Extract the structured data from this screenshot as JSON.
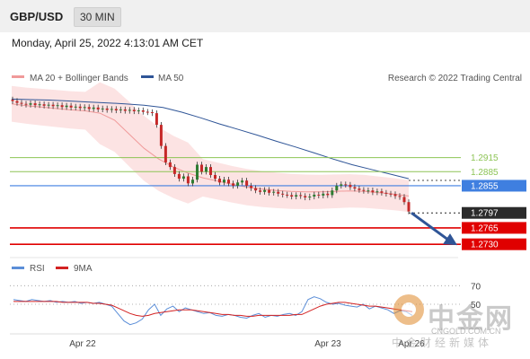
{
  "header": {
    "pair": "GBP/USD",
    "timeframe": "30 MIN"
  },
  "datetime": "Monday, April 25, 2022 4:13:01 AM CET",
  "colors": {
    "ma20": "#f09a9a",
    "ma50": "#2f5597",
    "bands": "#fcdede",
    "up": "#2e7d32",
    "down": "#c62828",
    "resistance_green": "#8dc455",
    "pivot_blue": "#3f7fe0",
    "support_red": "#e00000",
    "arrow": "#2f5597",
    "rsi": "#5b8ed8",
    "rsi_ma": "#d32222"
  },
  "chart_data": [
    {
      "type": "candlestick",
      "legend": [
        {
          "label": "MA 20 + Bollinger Bands",
          "color": "#f09a9a"
        },
        {
          "label": "MA 50",
          "color": "#2f5597"
        }
      ],
      "legend_placement": "top-left",
      "credit": "Research © 2022 Trading Central",
      "levels": [
        {
          "value": 1.2915,
          "label": "1.2915",
          "kind": "resistance"
        },
        {
          "value": 1.2885,
          "label": "1.2885",
          "kind": "resistance"
        },
        {
          "value": 1.2855,
          "label": "1.2855",
          "kind": "pivot"
        },
        {
          "value": 1.2797,
          "label": "1.2797",
          "kind": "last"
        },
        {
          "value": 1.2765,
          "label": "1.2765",
          "kind": "support"
        },
        {
          "value": 1.273,
          "label": "1.2730",
          "kind": "support"
        }
      ],
      "ylim": [
        1.2715,
        1.306
      ],
      "candles": [
        1.3036,
        1.3032,
        1.303,
        1.3028,
        1.3031,
        1.3027,
        1.3029,
        1.3026,
        1.3028,
        1.3025,
        1.3027,
        1.3023,
        1.3026,
        1.3022,
        1.3024,
        1.3021,
        1.3023,
        1.3019,
        1.3022,
        1.3018,
        1.302,
        1.3017,
        1.3019,
        1.3016,
        1.3018,
        1.3015,
        1.3017,
        1.3014,
        1.3016,
        1.3013,
        1.3012,
        1.301,
        1.2985,
        1.294,
        1.2905,
        1.2895,
        1.288,
        1.287,
        1.2875,
        1.286,
        1.2868,
        1.29,
        1.2885,
        1.2895,
        1.2878,
        1.287,
        1.2862,
        1.2868,
        1.286,
        1.2855,
        1.2862,
        1.2866,
        1.2855,
        1.285,
        1.2845,
        1.2842,
        1.2846,
        1.284,
        1.2842,
        1.2838,
        1.2836,
        1.2835,
        1.2832,
        1.2835,
        1.2833,
        1.283,
        1.2832,
        1.2836,
        1.2834,
        1.2838,
        1.2835,
        1.2845,
        1.2855,
        1.2858,
        1.2857,
        1.2852,
        1.2849,
        1.2846,
        1.2844,
        1.2845,
        1.2841,
        1.2843,
        1.284,
        1.2838,
        1.2837,
        1.2833,
        1.2831,
        1.282,
        1.28
      ],
      "ma20": [
        1.303,
        1.3026,
        1.3023,
        1.302,
        1.3017,
        1.3015,
        1.301,
        1.2995,
        1.2965,
        1.2935,
        1.2912,
        1.2895,
        1.2882,
        1.2872,
        1.2865,
        1.2858,
        1.2852,
        1.2848,
        1.2845,
        1.2843,
        1.2842,
        1.2842,
        1.2843,
        1.2844,
        1.2843,
        1.284,
        1.2837,
        1.2833
      ],
      "ma50": [
        1.304,
        1.3039,
        1.3038,
        1.3036,
        1.3034,
        1.3032,
        1.303,
        1.3027,
        1.3022,
        1.3012,
        1.3,
        1.2987,
        1.2975,
        1.2963,
        1.295,
        1.2938,
        1.2925,
        1.2912,
        1.29,
        1.289,
        1.288,
        1.287
      ],
      "x_ticks": [
        "Apr 22",
        "Apr 23",
        "Apr 26"
      ],
      "forecast": {
        "from": 1.2797,
        "to": 1.273,
        "direction": "down"
      }
    },
    {
      "type": "line",
      "legend": [
        {
          "label": "RSI",
          "color": "#5b8ed8"
        },
        {
          "label": "9MA",
          "color": "#d32222"
        }
      ],
      "ylim": [
        20,
        80
      ],
      "y_ticks": [
        "70",
        "50"
      ],
      "rsi": [
        55,
        54,
        53,
        55,
        54,
        53,
        54,
        52,
        53,
        52,
        53,
        51,
        52,
        51,
        52,
        50,
        48,
        40,
        32,
        28,
        30,
        34,
        44,
        50,
        38,
        45,
        48,
        42,
        46,
        44,
        42,
        40,
        41,
        38,
        37,
        39,
        38,
        36,
        35,
        38,
        40,
        36,
        38,
        37,
        39,
        40,
        38,
        42,
        55,
        58,
        56,
        52,
        50,
        51,
        49,
        48,
        47,
        50,
        45,
        48,
        46,
        44,
        40,
        43,
        42,
        38
      ],
      "ma9": [
        53,
        53,
        53,
        53,
        53,
        53,
        53,
        53,
        52,
        52,
        52,
        52,
        52,
        51,
        51,
        50,
        49,
        46,
        43,
        40,
        38,
        37,
        38,
        40,
        41,
        42,
        43,
        44,
        44,
        44,
        43,
        42,
        41,
        40,
        39,
        39,
        38,
        38,
        37,
        37,
        38,
        38,
        38,
        38,
        38,
        38,
        39,
        39,
        42,
        45,
        48,
        50,
        51,
        52,
        52,
        51,
        50,
        49,
        48,
        48,
        47,
        46,
        45,
        44,
        43,
        42
      ]
    }
  ],
  "watermark": {
    "cn": "中金网",
    "url": "CNGOLD.COM.CN",
    "sub": "中金财经新媒体"
  }
}
